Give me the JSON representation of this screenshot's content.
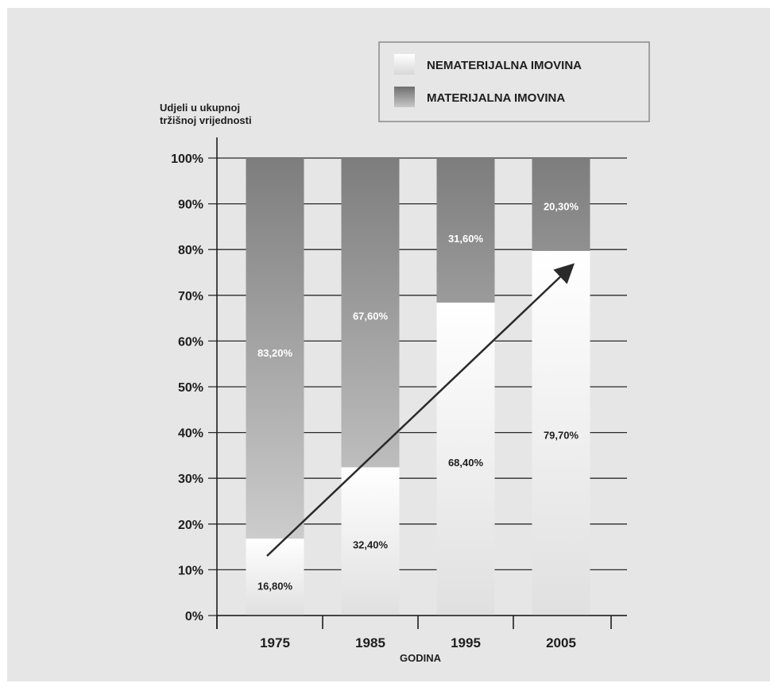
{
  "chart_data": {
    "type": "bar",
    "stacked": true,
    "categories": [
      "1975",
      "1985",
      "1995",
      "2005"
    ],
    "series": [
      {
        "name": "NEMATERIJALNA IMOVINA",
        "values": [
          16.8,
          32.4,
          68.4,
          79.7
        ],
        "labels": [
          "16,80%",
          "32,40%",
          "68,40%",
          "79,70%"
        ]
      },
      {
        "name": "MATERIJALNA IMOVINA",
        "values": [
          83.2,
          67.6,
          31.6,
          20.3
        ],
        "labels": [
          "83,20%",
          "67,60%",
          "31,60%",
          "20,30%"
        ]
      }
    ],
    "ylabel": [
      "Udjeli u ukupnoj",
      "tržišnoj vrijednosti"
    ],
    "xlabel": "GODINA",
    "ylim": [
      0,
      100
    ],
    "yticks": [
      0,
      10,
      20,
      30,
      40,
      50,
      60,
      70,
      80,
      90,
      100
    ],
    "ytick_labels": [
      "0%",
      "10%",
      "20%",
      "30%",
      "40%",
      "50%",
      "60%",
      "70%",
      "80%",
      "90%",
      "100%"
    ],
    "grid": true,
    "legend": "top-right",
    "annotation": "rising-trend-arrow",
    "colors": {
      "tangible_top": "#7d7d7d",
      "tangible_bottom": "#dcdcdc",
      "intangible_top": "#ffffff",
      "intangible_bottom": "#e0e0e0",
      "axis": "#1e1e1e",
      "background": "#e6e6e6"
    }
  }
}
